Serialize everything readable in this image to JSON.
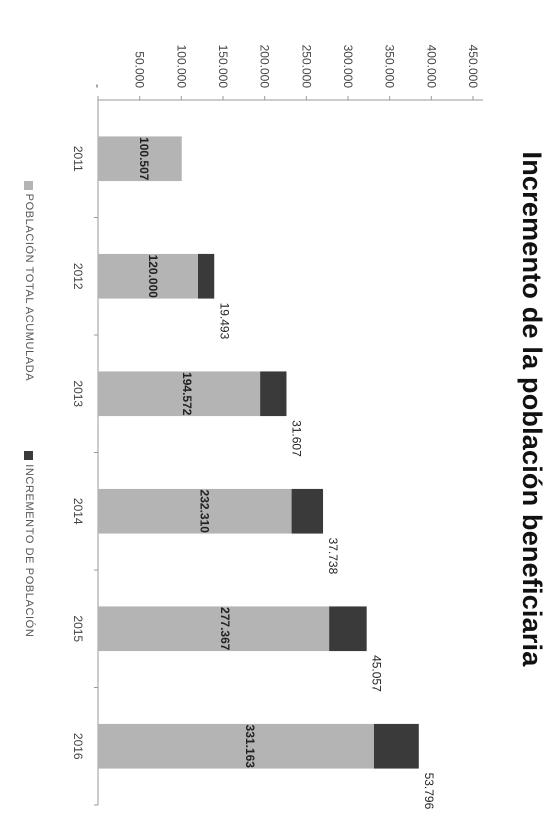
{
  "chart_data": {
    "type": "bar",
    "stacked": true,
    "title": "Incremento de la población beneficiaria",
    "xlabel": "",
    "ylabel": "",
    "categories": [
      "2011",
      "2012",
      "2013",
      "2014",
      "2015",
      "2016"
    ],
    "series": [
      {
        "name": "POBLACIÓN TOTAL ACUMULADA",
        "color": "#b4b4b4",
        "values": [
          100507,
          120000,
          194572,
          232310,
          277367,
          331163
        ],
        "labels": [
          "100.507",
          "120.000",
          "194.572",
          "232.310",
          "277.367",
          "331.163"
        ]
      },
      {
        "name": "INCREMENTO DE POBLACIÓN",
        "color": "#3a3a3a",
        "values": [
          null,
          19493,
          31607,
          37738,
          45057,
          53796
        ],
        "labels": [
          "",
          "19.493",
          "31.607",
          "37.738",
          "45.057",
          "53.796"
        ]
      }
    ],
    "y_ticks": [
      "-",
      "50.000",
      "100.000",
      "150.000",
      "200.000",
      "250.000",
      "300.000",
      "350.000",
      "400.000",
      "450.000"
    ],
    "ylim": [
      0,
      450000
    ],
    "grid": false,
    "legend_position": "bottom",
    "orientation": "rotated-90"
  }
}
